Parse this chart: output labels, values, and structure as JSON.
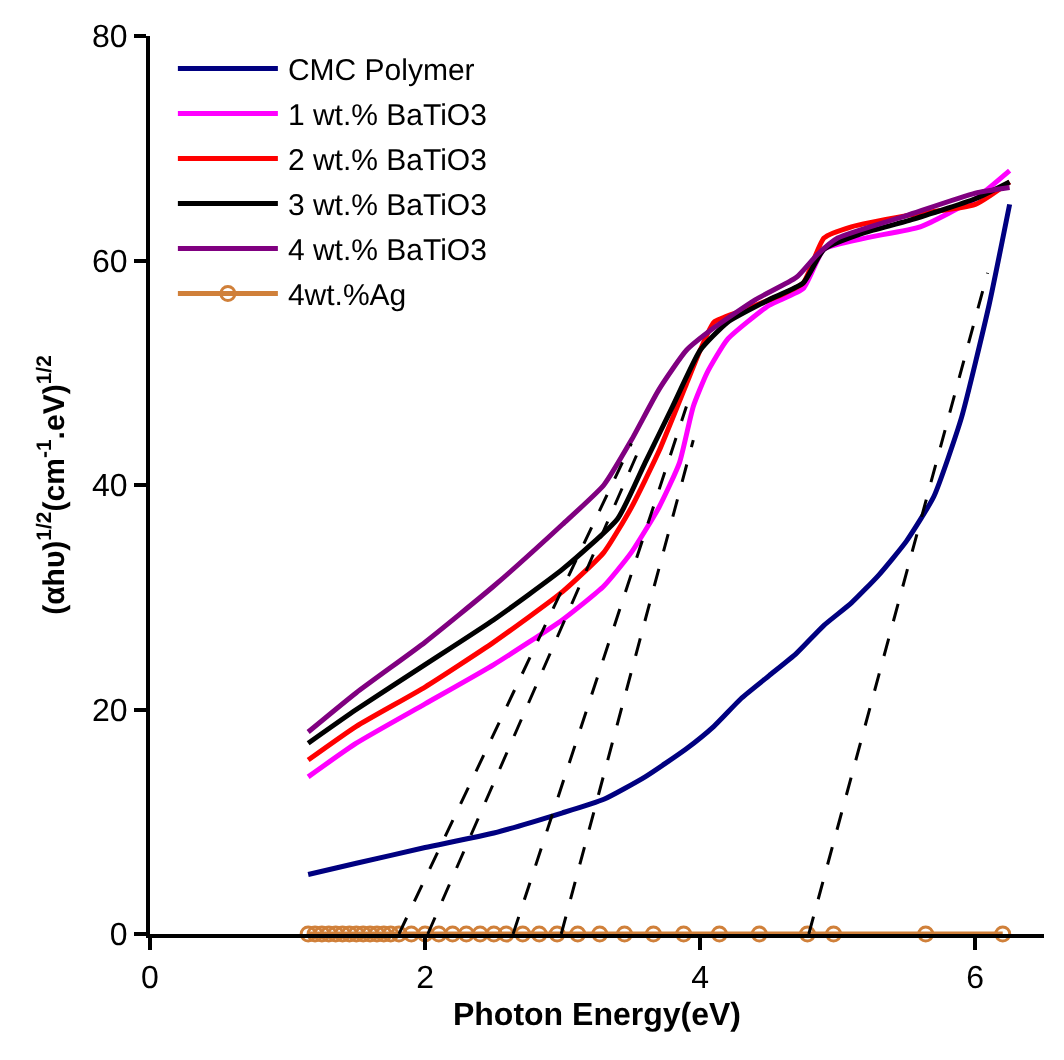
{
  "chart_data": {
    "type": "line",
    "xlabel": "Photon Energy(eV)",
    "ylabel": "(αhυ)$^{1/2}$(cm$^{-1}$.eV)$^{1/2}$",
    "xlim": [
      0,
      6.5
    ],
    "xticks": [
      0,
      2,
      4,
      6
    ],
    "ylim": [
      0,
      80
    ],
    "yticks": [
      0,
      20,
      40,
      60,
      80
    ],
    "legend": "top left",
    "marker": "none",
    "line_style": "solid",
    "series": [
      {
        "name": "CMC Polymer",
        "color": "#000080",
        "x": [
          1.15,
          1.5,
          2,
          2.5,
          3,
          3.3,
          3.6,
          3.9,
          4.1,
          4.3,
          4.5,
          4.7,
          4.9,
          5.1,
          5.3,
          5.5,
          5.7,
          5.9,
          6.1,
          6.25
        ],
        "values": [
          5.3,
          6.3,
          7.7,
          9,
          10.8,
          12,
          14,
          16.5,
          18.5,
          21,
          23,
          25,
          27.5,
          29.5,
          32,
          35,
          39,
          46,
          56,
          65
        ]
      },
      {
        "name": "1 wt.% BaTiO3",
        "color": "#ff00ff",
        "x": [
          1.15,
          1.5,
          2,
          2.5,
          3,
          3.3,
          3.5,
          3.7,
          3.85,
          3.95,
          4.05,
          4.2,
          4.5,
          4.75,
          4.9,
          5.2,
          5.6,
          6.0,
          6.25
        ],
        "values": [
          14,
          17,
          20.5,
          24,
          28,
          31,
          34,
          38,
          42,
          47,
          50,
          53,
          56,
          57.5,
          61,
          62,
          63,
          65.5,
          68
        ]
      },
      {
        "name": "2 wt.% BaTiO3",
        "color": "#ff0000",
        "x": [
          1.15,
          1.5,
          2,
          2.5,
          3,
          3.3,
          3.5,
          3.7,
          3.9,
          4.0,
          4.1,
          4.3,
          4.6,
          4.75,
          4.9,
          5.1,
          5.5,
          6.0,
          6.25
        ],
        "values": [
          15.5,
          18.5,
          22,
          26,
          30.5,
          34,
          38,
          43,
          49,
          52,
          54.5,
          55.5,
          57,
          58,
          62,
          63,
          64,
          65,
          67
        ]
      },
      {
        "name": "3 wt.% BaTiO3",
        "color": "#000000",
        "x": [
          1.15,
          1.5,
          2,
          2.5,
          3,
          3.4,
          3.6,
          3.8,
          4.0,
          4.2,
          4.5,
          4.75,
          4.9,
          5.2,
          5.5,
          6.0,
          6.25
        ],
        "values": [
          17,
          20,
          24,
          28,
          32.5,
          37,
          42,
          47,
          52,
          54.5,
          56.5,
          58,
          61,
          62.5,
          63.5,
          65.5,
          67
        ]
      },
      {
        "name": "4 wt.% BaTiO3",
        "color": "#800080",
        "x": [
          1.15,
          1.5,
          2,
          2.5,
          3,
          3.3,
          3.5,
          3.7,
          3.9,
          4.1,
          4.4,
          4.7,
          4.85,
          5.0,
          5.5,
          6.0,
          6.25
        ],
        "values": [
          18,
          21.5,
          26,
          31,
          36.5,
          40,
          44,
          48.5,
          52,
          54,
          56.5,
          58.5,
          60.5,
          62,
          64,
          66,
          66.5
        ]
      },
      {
        "name": "4wt.%Ag",
        "color": "#d0803a",
        "marker": "circle",
        "x": [
          1.15,
          1.2,
          1.25,
          1.3,
          1.35,
          1.4,
          1.45,
          1.5,
          1.55,
          1.6,
          1.65,
          1.7,
          1.75,
          1.81,
          1.9,
          2.0,
          2.1,
          2.2,
          2.3,
          2.4,
          2.5,
          2.59,
          2.71,
          2.83,
          2.96,
          3.11,
          3.27,
          3.45,
          3.66,
          3.88,
          4.14,
          4.43,
          4.78,
          4.97,
          5.64,
          6.2
        ],
        "values": [
          0,
          0,
          0,
          0,
          0,
          0,
          0,
          0,
          0,
          0,
          0,
          0,
          0,
          0,
          0,
          0,
          0,
          0,
          0,
          0,
          0,
          0,
          0,
          0,
          0,
          0,
          0,
          0,
          0,
          0,
          0,
          0,
          0,
          0,
          0,
          0
        ]
      },
      {
        "color": "#000000",
        "line_style": "dashed",
        "x": [
          1.81,
          3.5
        ],
        "values": [
          0,
          43.7
        ]
      },
      {
        "color": "#000000",
        "line_style": "dashed",
        "x": [
          2.02,
          3.55
        ],
        "values": [
          0,
          43
        ]
      },
      {
        "color": "#000000",
        "line_style": "dashed",
        "x": [
          2.64,
          3.9
        ],
        "values": [
          0,
          47
        ]
      },
      {
        "color": "#000000",
        "line_style": "dashed",
        "x": [
          2.99,
          3.95
        ],
        "values": [
          0,
          44
        ]
      },
      {
        "color": "#000000",
        "line_style": "dashed",
        "x": [
          4.79,
          6.09
        ],
        "values": [
          0,
          58.9
        ]
      }
    ]
  }
}
